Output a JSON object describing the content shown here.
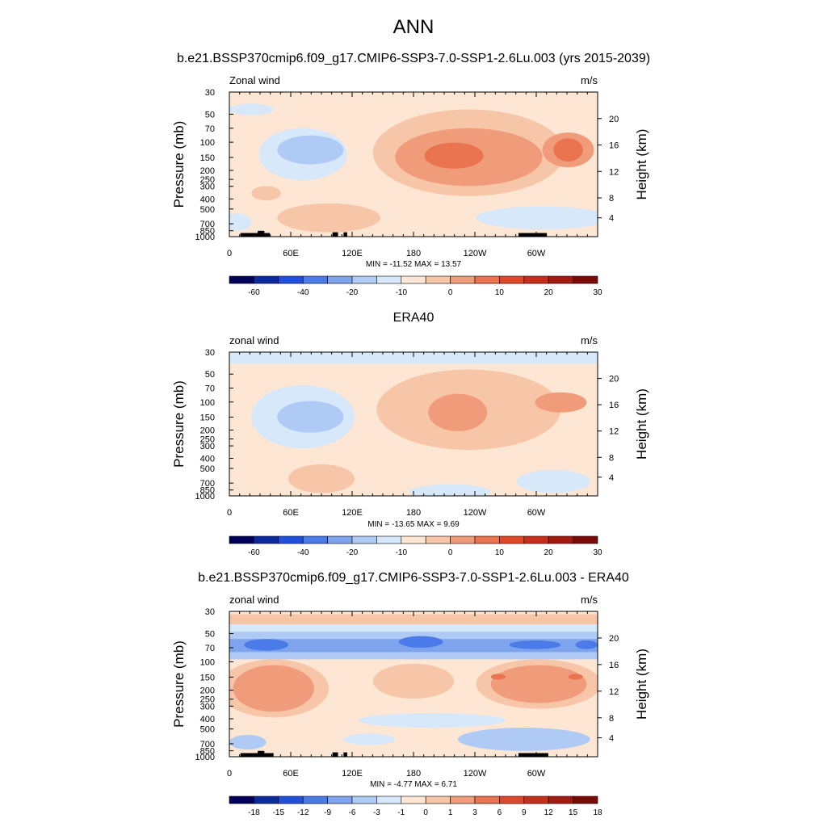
{
  "page": {
    "main_title": "ANN",
    "panel1_title": "b.e21.BSSP370cmip6.f09_g17.CMIP6-SSP3-7.0-SSP1-2.6Lu.003 (yrs 2015-2039)",
    "panel2_title": "ERA40",
    "panel3_title": "b.e21.BSSP370cmip6.f09_g17.CMIP6-SSP3-7.0-SSP1-2.6Lu.003 - ERA40"
  },
  "chart_data": [
    {
      "type": "heatmap",
      "panel": "model",
      "left_label": "Zonal wind",
      "right_label": "m/s",
      "xlabel": "",
      "ylabel": "Pressure (mb)",
      "ylabel_right": "Height (km)",
      "x_ticks": [
        "0",
        "60E",
        "120E",
        "180",
        "120W",
        "60W"
      ],
      "y_ticks": [
        "30",
        "50",
        "70",
        "100",
        "150",
        "200",
        "250",
        "300",
        "400",
        "500",
        "700",
        "850",
        "1000"
      ],
      "y_right_ticks": [
        "20",
        "16",
        "12",
        "8",
        "4"
      ],
      "stats": "MIN = -11.52  MAX =  13.57",
      "min": -11.52,
      "max": 13.57,
      "colorbar_labels": [
        "-60",
        "-40",
        "-20",
        "-10",
        "0",
        "10",
        "20",
        "30"
      ],
      "colorbar_colors": [
        "#00005a",
        "#0b2a9e",
        "#1f4fdc",
        "#4a7be8",
        "#7fa4ee",
        "#aecaf5",
        "#d7e8fb",
        "#fde7d4",
        "#f7c5a8",
        "#f09c7a",
        "#ea7350",
        "#e0482a",
        "#c62d1b",
        "#a31a10",
        "#7a0a06"
      ]
    },
    {
      "type": "heatmap",
      "panel": "ERA40",
      "left_label": "zonal wind",
      "right_label": "m/s",
      "xlabel": "",
      "ylabel": "Pressure (mb)",
      "ylabel_right": "Height (km)",
      "x_ticks": [
        "0",
        "60E",
        "120E",
        "180",
        "120W",
        "60W"
      ],
      "y_ticks": [
        "30",
        "50",
        "70",
        "100",
        "150",
        "200",
        "250",
        "300",
        "400",
        "500",
        "700",
        "850",
        "1000"
      ],
      "y_right_ticks": [
        "20",
        "16",
        "12",
        "8",
        "4"
      ],
      "stats": "MIN = -13.65  MAX =   9.69",
      "min": -13.65,
      "max": 9.69,
      "colorbar_labels": [
        "-60",
        "-40",
        "-20",
        "-10",
        "0",
        "10",
        "20",
        "30"
      ],
      "colorbar_colors": [
        "#00005a",
        "#0b2a9e",
        "#1f4fdc",
        "#4a7be8",
        "#7fa4ee",
        "#aecaf5",
        "#d7e8fb",
        "#fde7d4",
        "#f7c5a8",
        "#f09c7a",
        "#ea7350",
        "#e0482a",
        "#c62d1b",
        "#a31a10",
        "#7a0a06"
      ]
    },
    {
      "type": "heatmap",
      "panel": "difference",
      "left_label": "zonal wind",
      "right_label": "m/s",
      "xlabel": "",
      "ylabel": "Pressure (mb)",
      "ylabel_right": "Height (km)",
      "x_ticks": [
        "0",
        "60E",
        "120E",
        "180",
        "120W",
        "60W"
      ],
      "y_ticks": [
        "30",
        "50",
        "70",
        "100",
        "150",
        "200",
        "250",
        "300",
        "400",
        "500",
        "700",
        "850",
        "1000"
      ],
      "y_right_ticks": [
        "20",
        "16",
        "12",
        "8",
        "4"
      ],
      "stats": "MIN =  -4.77  MAX =   6.71",
      "min": -4.77,
      "max": 6.71,
      "colorbar_labels": [
        "-18",
        "-15",
        "-12",
        "-9",
        "-6",
        "-3",
        "-1",
        "0",
        "1",
        "3",
        "6",
        "9",
        "12",
        "15",
        "18"
      ],
      "colorbar_colors": [
        "#00005a",
        "#0b2a9e",
        "#1f4fdc",
        "#4a7be8",
        "#7fa4ee",
        "#aecaf5",
        "#d7e8fb",
        "#fde7d4",
        "#f7c5a8",
        "#f09c7a",
        "#ea7350",
        "#e0482a",
        "#c62d1b",
        "#a31a10",
        "#7a0a06"
      ]
    }
  ]
}
